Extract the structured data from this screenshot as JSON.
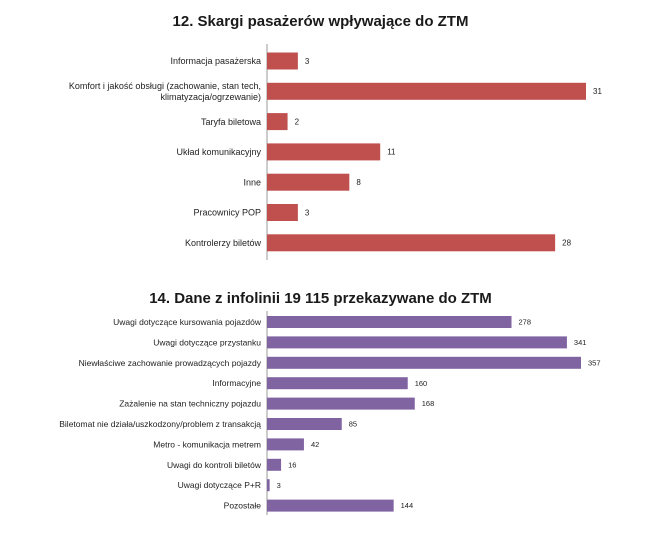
{
  "chart_data": [
    {
      "type": "bar",
      "orientation": "horizontal",
      "title": "12. Skargi pasażerów wpływające do ZTM",
      "categories": [
        "Informacja pasażerska",
        "Komfort i jakość obsługi (zachowanie, stan tech, klimatyzacja/ogrzewanie)",
        "Taryfa biletowa",
        "Układ komunikacyjny",
        "Inne",
        "Pracownicy POP",
        "Kontrolerzy biletów"
      ],
      "category_lines": [
        [
          "Informacja pasażerska"
        ],
        [
          "Komfort i jakość obsługi (zachowanie, stan tech,",
          "klimatyzacja/ogrzewanie)"
        ],
        [
          "Taryfa biletowa"
        ],
        [
          "Układ komunikacyjny"
        ],
        [
          "Inne"
        ],
        [
          "Pracownicy POP"
        ],
        [
          "Kontrolerzy biletów"
        ]
      ],
      "values": [
        3,
        31,
        2,
        11,
        8,
        3,
        28
      ],
      "color": "#c0504d",
      "xlim": [
        0,
        31
      ],
      "data_labels": true,
      "grid": false,
      "legend": "none"
    },
    {
      "type": "bar",
      "orientation": "horizontal",
      "title": "14. Dane z infolinii 19 115 przekazywane do ZTM",
      "categories": [
        "Uwagi dotyczące kursowania pojazdów",
        "Uwagi dotyczące przystanku",
        "Niewłaściwe zachowanie prowadzących pojazdy",
        "Informacyjne",
        "Zażalenie na stan techniczny pojazdu",
        "Biletomat nie działa/uszkodzony/problem z transakcją",
        "Metro - komunikacja metrem",
        "Uwagi do kontroli biletów",
        "Uwagi dotyczące P+R",
        "Pozostałe"
      ],
      "values": [
        278,
        341,
        357,
        160,
        168,
        85,
        42,
        16,
        3,
        144
      ],
      "color": "#8064a2",
      "xlim": [
        0,
        357
      ],
      "data_labels": true,
      "grid": false,
      "legend": "none"
    }
  ]
}
